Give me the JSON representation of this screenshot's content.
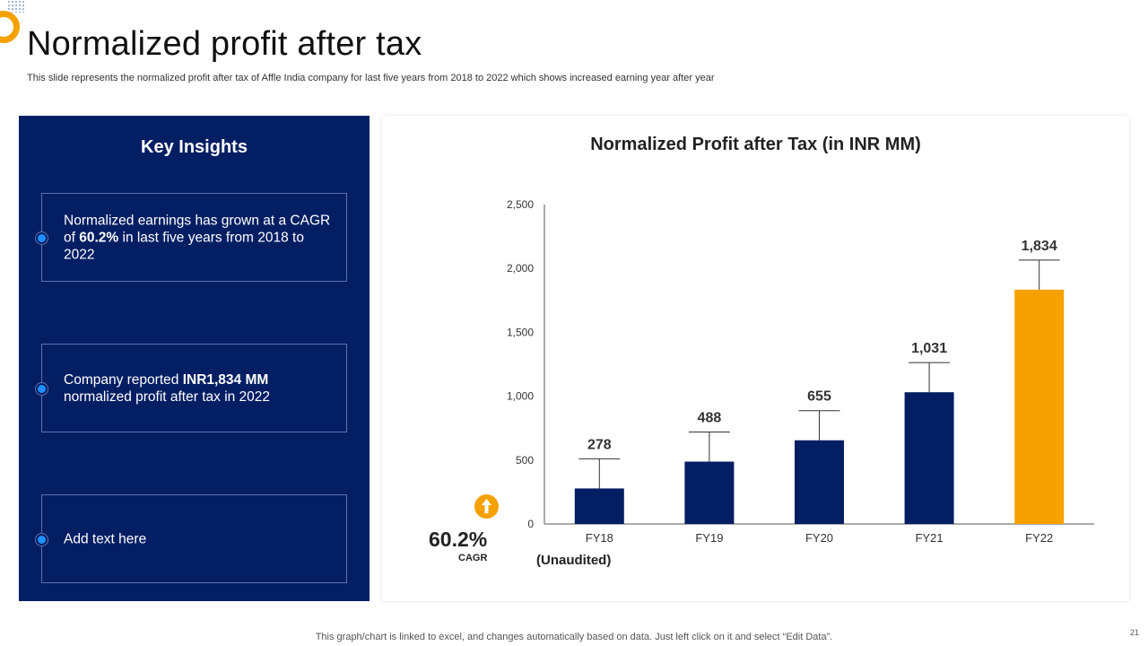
{
  "slide": {
    "title": "Normalized profit after tax",
    "subtitle": "This slide represents the normalized profit after tax of Affle India company for last five years from 2018 to 2022 which shows increased earning year after year",
    "footer": "This graph/chart is linked to excel, and changes automatically based on data. Just left click on it and select “Edit Data”.",
    "page_number": "21"
  },
  "insights": {
    "title": "Key Insights",
    "items": [
      {
        "parts": [
          "Normalized earnings has grown at a CAGR of ",
          "60.2%",
          " in last five years from 2018 to 2022"
        ]
      },
      {
        "parts": [
          "Company reported ",
          "INR1,834 MM",
          " normalized profit after tax in 2022"
        ]
      },
      {
        "parts": [
          "Add text here",
          "",
          ""
        ]
      }
    ]
  },
  "cagr": {
    "value": "60.2%",
    "label": "CAGR",
    "note": "(Unaudited)"
  },
  "colors": {
    "navy": "#041e64",
    "accent": "#f5a100"
  },
  "chart_data": {
    "type": "bar",
    "title": "Normalized Profit after Tax (in INR MM)",
    "categories": [
      "FY18",
      "FY19",
      "FY20",
      "FY21",
      "FY22"
    ],
    "values": [
      278,
      488,
      655,
      1031,
      1834
    ],
    "value_labels": [
      "278",
      "488",
      "655",
      "1,031",
      "1,834"
    ],
    "bar_colors": [
      "#041e64",
      "#041e64",
      "#041e64",
      "#041e64",
      "#f5a100"
    ],
    "y_ticks": [
      0,
      500,
      1000,
      1500,
      2000,
      2500
    ],
    "y_tick_labels": [
      "0",
      "500",
      "1,000",
      "1,500",
      "2,000",
      "2,500"
    ],
    "ylim": [
      0,
      2500
    ],
    "xlabel": "",
    "ylabel": "",
    "grid": false,
    "legend": "none"
  }
}
